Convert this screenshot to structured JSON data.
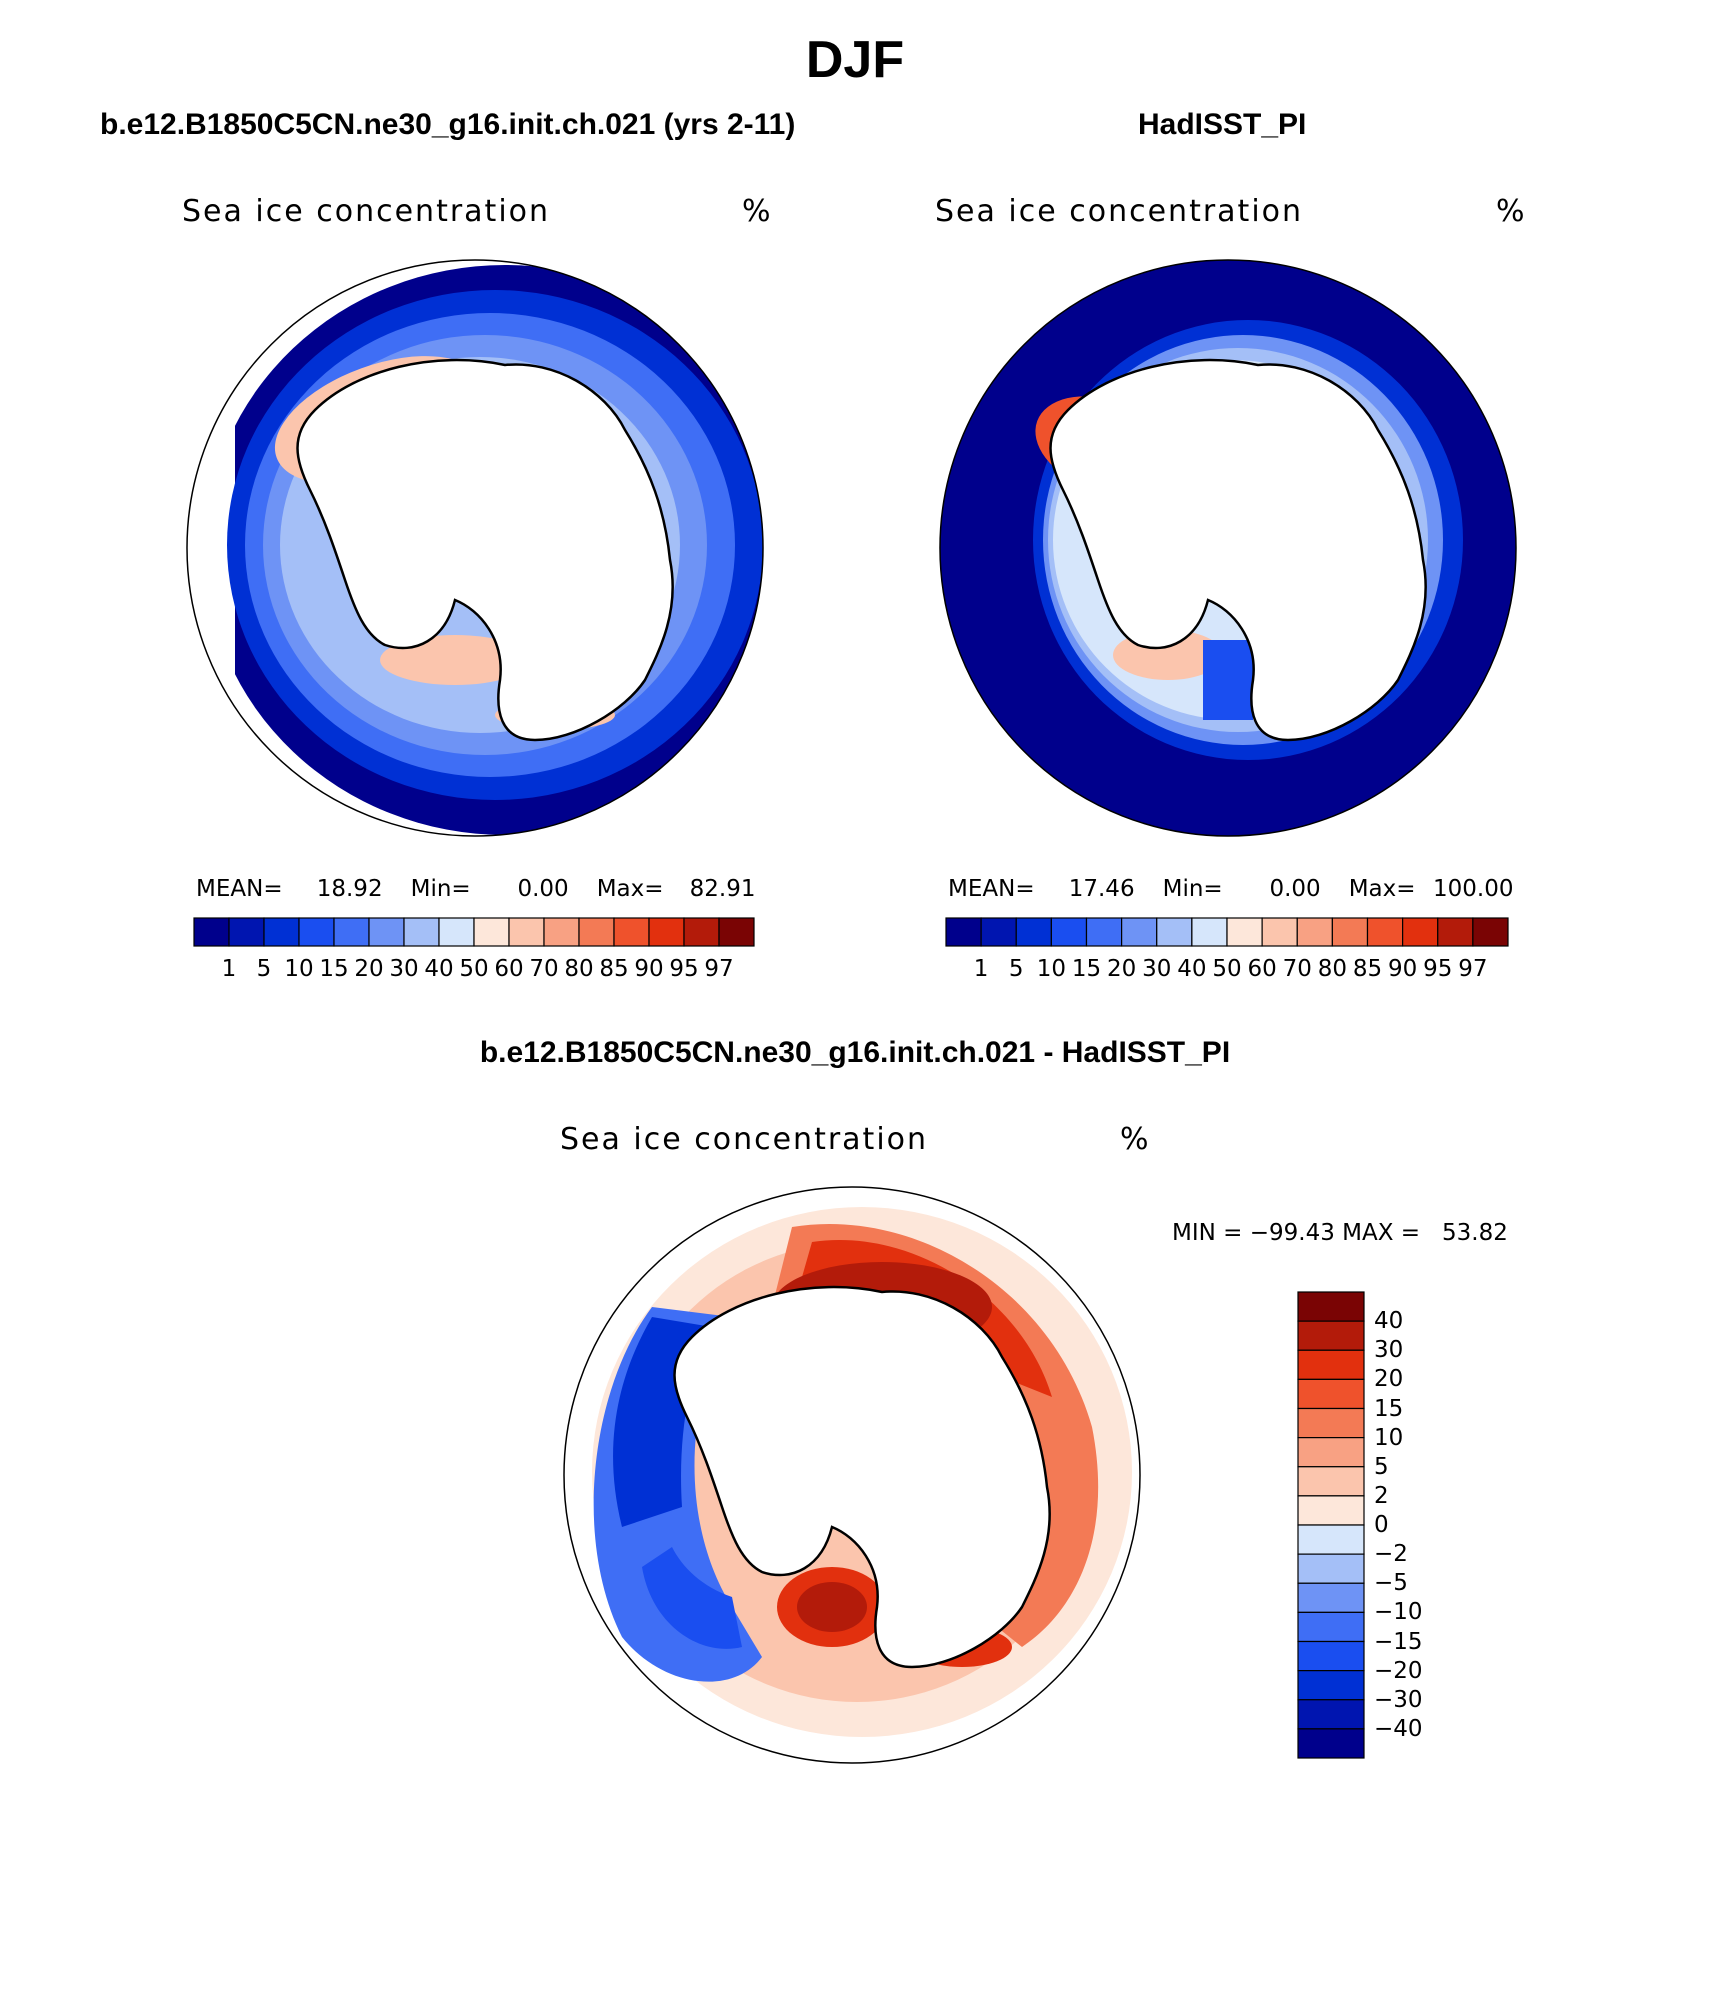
{
  "figure": {
    "title": "DJF",
    "left_panel": {
      "case_title": "b.e12.B1850C5CN.ne30_g16.init.ch.021 (yrs 2-11)",
      "variable": "Sea ice concentration",
      "units": "%",
      "mean_label": "MEAN=",
      "mean": "18.92",
      "min_label": "Min=",
      "min": "0.00",
      "max_label": "Max=",
      "max": "82.91"
    },
    "right_panel": {
      "case_title": "HadISST_PI",
      "variable": "Sea ice concentration",
      "units": "%",
      "mean_label": "MEAN=",
      "mean": "17.46",
      "min_label": "Min=",
      "min": "0.00",
      "max_label": "Max=",
      "max": "100.00"
    },
    "diff_panel": {
      "case_title": "b.e12.B1850C5CN.ne30_g16.init.ch.021 - HadISST_PI",
      "variable": "Sea ice concentration",
      "units": "%",
      "minmax_text": "MIN = −99.43 MAX =   53.82"
    },
    "colorbar_abs": {
      "labels": [
        "1",
        "5",
        "10",
        "15",
        "20",
        "30",
        "40",
        "50",
        "60",
        "70",
        "80",
        "85",
        "90",
        "95",
        "97"
      ],
      "colors": [
        "#00008c",
        "#0015b0",
        "#0030d4",
        "#1a4ef0",
        "#3f6ef5",
        "#6e93f5",
        "#a4bff7",
        "#d6e6fb",
        "#fde7da",
        "#fbc5ad",
        "#f8a183",
        "#f37a55",
        "#ef522c",
        "#e2300e",
        "#b31b0a",
        "#7a0404"
      ]
    },
    "colorbar_diff": {
      "labels": [
        "40",
        "30",
        "20",
        "15",
        "10",
        "5",
        "2",
        "0",
        "−2",
        "−5",
        "−10",
        "−15",
        "−20",
        "−30",
        "−40"
      ],
      "colors": [
        "#7a0404",
        "#b31b0a",
        "#e2300e",
        "#ef522c",
        "#f37a55",
        "#f8a183",
        "#fbc5ad",
        "#fde7da",
        "#d6e6fb",
        "#a4bff7",
        "#6e93f5",
        "#3f6ef5",
        "#1a4ef0",
        "#0030d4",
        "#0015b0",
        "#00008c"
      ]
    }
  }
}
